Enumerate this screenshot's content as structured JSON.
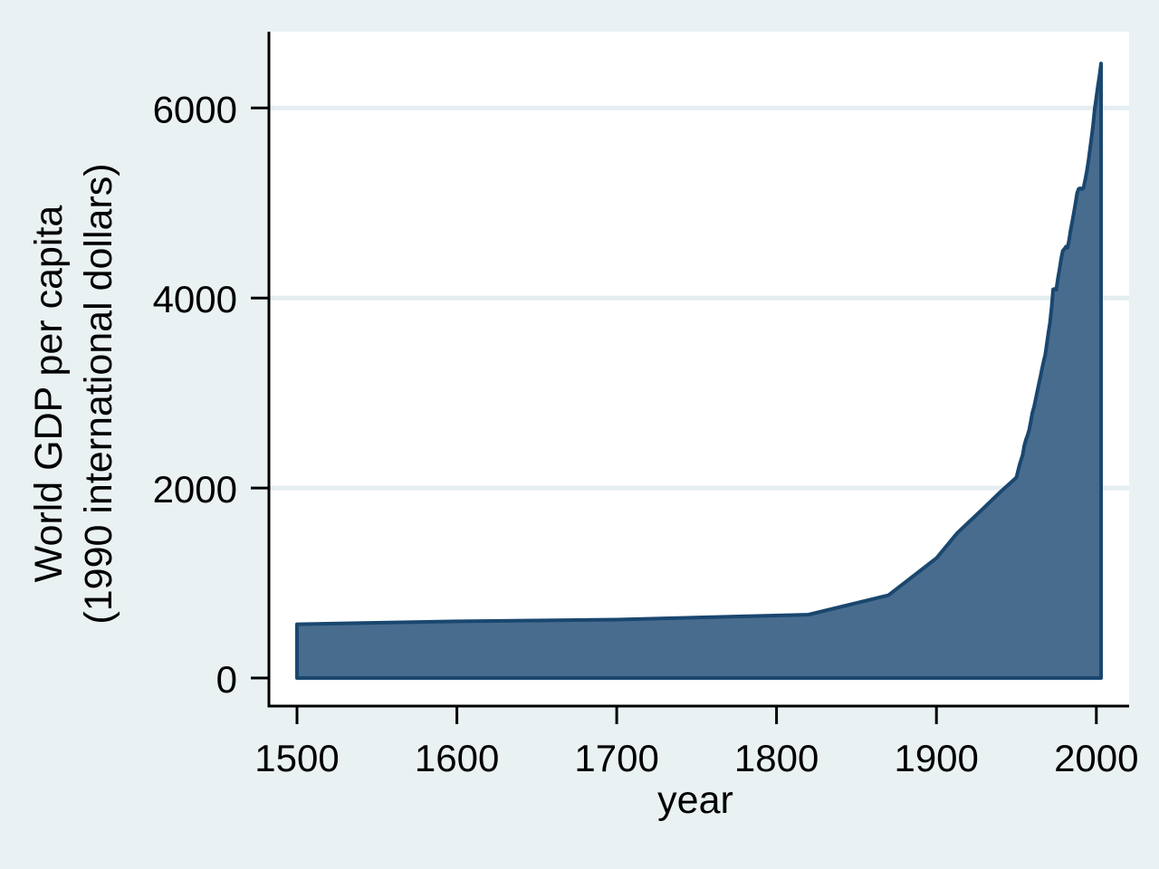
{
  "colors": {
    "background": "#EAF1F3",
    "plot_background": "#FFFFFF",
    "area_fill": "#486C8E",
    "area_outline": "#1A476F",
    "gridline": "#E4EDF0",
    "axis": "#000000",
    "text": "#000000"
  },
  "chart_data": {
    "type": "area",
    "title": "",
    "xlabel": "year",
    "ylabel_lines": [
      "World GDP per capita",
      "(1990 international dollars)"
    ],
    "legend": "none",
    "grid": true,
    "x_ticks": [
      1500,
      1600,
      1700,
      1800,
      1900,
      2000
    ],
    "x_tick_labels": [
      "1500",
      "1600",
      "1700",
      "1800",
      "1900",
      "2000"
    ],
    "y_ticks": [
      0,
      2000,
      4000,
      6000
    ],
    "y_tick_labels": [
      "0",
      "2000",
      "4000",
      "6000"
    ],
    "y_gridlines": [
      2000,
      4000,
      6000
    ],
    "xlim": [
      1483,
      2020
    ],
    "ylim": [
      0,
      6800
    ],
    "x_data_range": [
      1500,
      2003
    ],
    "series": [
      {
        "name": "world-gdp-per-capita",
        "points": [
          [
            1500,
            566
          ],
          [
            1600,
            596
          ],
          [
            1700,
            615
          ],
          [
            1820,
            667
          ],
          [
            1870,
            871
          ],
          [
            1900,
            1262
          ],
          [
            1913,
            1526
          ],
          [
            1929,
            1780
          ],
          [
            1940,
            1958
          ],
          [
            1950,
            2111
          ],
          [
            1952,
            2245
          ],
          [
            1954,
            2350
          ],
          [
            1955,
            2450
          ],
          [
            1956,
            2510
          ],
          [
            1957,
            2555
          ],
          [
            1958,
            2610
          ],
          [
            1959,
            2700
          ],
          [
            1960,
            2790
          ],
          [
            1961,
            2850
          ],
          [
            1962,
            2930
          ],
          [
            1963,
            3010
          ],
          [
            1964,
            3090
          ],
          [
            1965,
            3170
          ],
          [
            1966,
            3250
          ],
          [
            1967,
            3330
          ],
          [
            1968,
            3400
          ],
          [
            1969,
            3510
          ],
          [
            1970,
            3630
          ],
          [
            1971,
            3740
          ],
          [
            1972,
            3890
          ],
          [
            1973,
            4091
          ],
          [
            1974,
            4095
          ],
          [
            1975,
            4088
          ],
          [
            1976,
            4210
          ],
          [
            1977,
            4300
          ],
          [
            1978,
            4410
          ],
          [
            1979,
            4495
          ],
          [
            1980,
            4515
          ],
          [
            1981,
            4540
          ],
          [
            1982,
            4530
          ],
          [
            1983,
            4610
          ],
          [
            1984,
            4720
          ],
          [
            1985,
            4810
          ],
          [
            1986,
            4900
          ],
          [
            1987,
            5000
          ],
          [
            1988,
            5105
          ],
          [
            1989,
            5150
          ],
          [
            1990,
            5155
          ],
          [
            1991,
            5145
          ],
          [
            1992,
            5160
          ],
          [
            1993,
            5240
          ],
          [
            1994,
            5330
          ],
          [
            1995,
            5430
          ],
          [
            1996,
            5560
          ],
          [
            1997,
            5690
          ],
          [
            1998,
            5820
          ],
          [
            1999,
            5990
          ],
          [
            2000,
            6110
          ],
          [
            2001,
            6230
          ],
          [
            2002,
            6340
          ],
          [
            2003,
            6469
          ]
        ]
      }
    ]
  }
}
